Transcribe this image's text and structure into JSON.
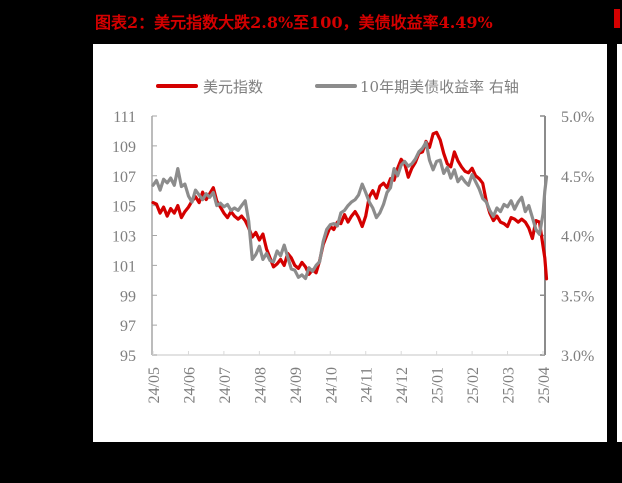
{
  "title": "图表2：美元指数大跌2.8%至100，美债收益率4.49%",
  "chart_data": {
    "type": "line",
    "title": "图表2：美元指数大跌2.8%至100，美债收益率4.49%",
    "xlabel": "",
    "ylabel_left": "",
    "ylabel_right": "",
    "legend_position": "top",
    "grid": false,
    "categories": [
      "24/05",
      "24/06",
      "24/07",
      "24/08",
      "24/09",
      "24/10",
      "24/11",
      "24/12",
      "25/01",
      "25/02",
      "25/03",
      "25/04"
    ],
    "y_left": {
      "ticks": [
        "95",
        "97",
        "99",
        "101",
        "103",
        "105",
        "107",
        "109",
        "111"
      ],
      "range": [
        95,
        111
      ]
    },
    "y_right": {
      "ticks": [
        "3.0%",
        "3.5%",
        "4.0%",
        "4.5%",
        "5.0%"
      ],
      "range": [
        3.0,
        5.0
      ]
    },
    "series": [
      {
        "name": "美元指数",
        "axis": "left",
        "color": "#d40000",
        "x": [
          0,
          0.1,
          0.2,
          0.3,
          0.4,
          0.5,
          0.6,
          0.7,
          0.8,
          0.9,
          1.0,
          1.1,
          1.2,
          1.3,
          1.4,
          1.5,
          1.6,
          1.7,
          1.8,
          1.9,
          2.0,
          2.1,
          2.2,
          2.3,
          2.4,
          2.5,
          2.6,
          2.7,
          2.8,
          2.9,
          3.0,
          3.1,
          3.2,
          3.3,
          3.4,
          3.5,
          3.6,
          3.7,
          3.8,
          3.9,
          4.0,
          4.1,
          4.2,
          4.3,
          4.4,
          4.5,
          4.6,
          4.7,
          4.8,
          4.9,
          5.0,
          5.1,
          5.2,
          5.3,
          5.4,
          5.5,
          5.6,
          5.7,
          5.8,
          5.9,
          6.0,
          6.1,
          6.2,
          6.3,
          6.4,
          6.5,
          6.6,
          6.7,
          6.8,
          6.9,
          7.0,
          7.1,
          7.2,
          7.3,
          7.4,
          7.5,
          7.6,
          7.7,
          7.8,
          7.9,
          8.0,
          8.1,
          8.2,
          8.3,
          8.4,
          8.5,
          8.6,
          8.7,
          8.8,
          8.9,
          9.0,
          9.1,
          9.2,
          9.3,
          9.4,
          9.5,
          9.6,
          9.7,
          9.8,
          9.9,
          10.0,
          10.1,
          10.2,
          10.3,
          10.4,
          10.5,
          10.6,
          10.7,
          10.8,
          10.9,
          11.0,
          11.05,
          11.1
        ],
        "values": [
          105.2,
          105.1,
          104.5,
          104.9,
          104.3,
          104.8,
          104.5,
          105.0,
          104.2,
          104.6,
          104.9,
          105.3,
          105.6,
          105.2,
          105.9,
          105.4,
          105.8,
          106.2,
          105.3,
          104.9,
          104.5,
          104.2,
          104.6,
          104.3,
          104.1,
          104.3,
          104.0,
          103.5,
          102.9,
          103.2,
          102.7,
          103.1,
          102.1,
          101.5,
          100.9,
          101.1,
          101.4,
          101.0,
          101.8,
          101.5,
          101.0,
          100.8,
          101.2,
          100.9,
          100.4,
          100.7,
          100.5,
          101.3,
          102.4,
          103.0,
          103.6,
          103.4,
          103.9,
          103.8,
          104.4,
          103.9,
          104.3,
          104.6,
          104.2,
          103.6,
          104.3,
          105.6,
          106.0,
          105.5,
          106.3,
          106.5,
          106.2,
          106.8,
          106.7,
          107.5,
          108.1,
          107.8,
          106.9,
          107.5,
          107.9,
          108.5,
          108.6,
          109.3,
          108.9,
          109.8,
          109.9,
          109.4,
          108.5,
          107.8,
          107.6,
          108.6,
          108.0,
          107.6,
          107.3,
          107.2,
          107.5,
          107.0,
          106.8,
          106.5,
          105.3,
          104.5,
          104.0,
          104.3,
          103.9,
          103.8,
          103.6,
          104.2,
          104.1,
          103.9,
          104.1,
          103.9,
          103.5,
          102.8,
          104.0,
          103.9,
          102.3,
          101.5,
          100.1
        ]
      },
      {
        "name": "10年期美债收益率 右轴",
        "axis": "right",
        "color": "#8c8c8c",
        "x": [
          0,
          0.1,
          0.2,
          0.3,
          0.4,
          0.5,
          0.6,
          0.7,
          0.8,
          0.9,
          1.0,
          1.1,
          1.2,
          1.3,
          1.4,
          1.5,
          1.6,
          1.7,
          1.8,
          1.9,
          2.0,
          2.1,
          2.2,
          2.3,
          2.4,
          2.5,
          2.6,
          2.7,
          2.8,
          2.9,
          3.0,
          3.1,
          3.2,
          3.3,
          3.4,
          3.5,
          3.6,
          3.7,
          3.8,
          3.9,
          4.0,
          4.1,
          4.2,
          4.3,
          4.4,
          4.5,
          4.6,
          4.7,
          4.8,
          4.9,
          5.0,
          5.1,
          5.2,
          5.3,
          5.4,
          5.5,
          5.6,
          5.7,
          5.8,
          5.9,
          6.0,
          6.1,
          6.2,
          6.3,
          6.4,
          6.5,
          6.6,
          6.7,
          6.8,
          6.9,
          7.0,
          7.1,
          7.2,
          7.3,
          7.4,
          7.5,
          7.6,
          7.7,
          7.8,
          7.9,
          8.0,
          8.1,
          8.2,
          8.3,
          8.4,
          8.5,
          8.6,
          8.7,
          8.8,
          8.9,
          9.0,
          9.1,
          9.2,
          9.3,
          9.4,
          9.5,
          9.6,
          9.7,
          9.8,
          9.9,
          10.0,
          10.1,
          10.2,
          10.3,
          10.4,
          10.5,
          10.6,
          10.7,
          10.8,
          10.9,
          11.0,
          11.05,
          11.1
        ],
        "values": [
          4.42,
          4.46,
          4.38,
          4.47,
          4.44,
          4.48,
          4.42,
          4.56,
          4.41,
          4.43,
          4.33,
          4.28,
          4.38,
          4.34,
          4.3,
          4.35,
          4.32,
          4.36,
          4.25,
          4.27,
          4.24,
          4.26,
          4.21,
          4.23,
          4.21,
          4.25,
          4.29,
          4.12,
          3.8,
          3.84,
          3.91,
          3.8,
          3.85,
          3.79,
          3.78,
          3.87,
          3.83,
          3.92,
          3.82,
          3.72,
          3.71,
          3.65,
          3.67,
          3.64,
          3.73,
          3.7,
          3.75,
          3.78,
          3.95,
          4.05,
          4.09,
          4.1,
          4.08,
          4.19,
          4.21,
          4.25,
          4.28,
          4.3,
          4.34,
          4.43,
          4.36,
          4.28,
          4.23,
          4.15,
          4.19,
          4.26,
          4.36,
          4.4,
          4.56,
          4.5,
          4.59,
          4.62,
          4.58,
          4.6,
          4.64,
          4.7,
          4.73,
          4.78,
          4.63,
          4.55,
          4.62,
          4.63,
          4.52,
          4.57,
          4.48,
          4.55,
          4.45,
          4.49,
          4.45,
          4.42,
          4.51,
          4.45,
          4.39,
          4.31,
          4.28,
          4.21,
          4.16,
          4.23,
          4.2,
          4.26,
          4.24,
          4.29,
          4.22,
          4.28,
          4.32,
          4.2,
          4.25,
          4.15,
          4.05,
          4.01,
          4.18,
          4.37,
          4.49
        ]
      }
    ]
  },
  "legend": {
    "items": [
      {
        "label": "美元指数",
        "color": "#d40000"
      },
      {
        "label": "10年期美债收益率 右轴",
        "color": "#8c8c8c"
      }
    ]
  },
  "colors": {
    "dollar_index": "#d40000",
    "treasury_yield": "#8c8c8c",
    "axis": "#a6a6a6",
    "tick_text": "#7f7f7f",
    "title": "#d40000",
    "background": "#000000",
    "panel": "#ffffff"
  }
}
